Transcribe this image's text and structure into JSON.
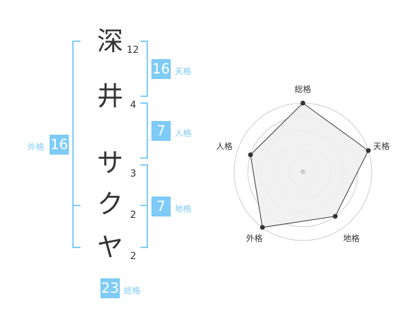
{
  "name": {
    "chars": [
      {
        "char": "深",
        "strokes": "12"
      },
      {
        "char": "井",
        "strokes": "4"
      },
      {
        "char": "サ",
        "strokes": "3"
      },
      {
        "char": "ク",
        "strokes": "2"
      },
      {
        "char": "ヤ",
        "strokes": "2"
      }
    ]
  },
  "kaku": {
    "tenkaku": {
      "label": "天格",
      "value": "16"
    },
    "jinkaku": {
      "label": "人格",
      "value": "7"
    },
    "chikaku": {
      "label": "地格",
      "value": "7"
    },
    "gaikaku": {
      "label": "外格",
      "value": "16"
    },
    "soukaku": {
      "label": "総格",
      "value": "23"
    }
  },
  "chart_data": {
    "type": "radar",
    "axes": [
      "総格",
      "天格",
      "地格",
      "外格",
      "人格"
    ],
    "values": [
      5,
      5,
      4,
      5,
      4
    ],
    "range": [
      0,
      5
    ],
    "rings": 5,
    "colors": {
      "accent": "#7ecbf7",
      "fill": "#f0f0f0",
      "line": "#333333",
      "grid": "#cccccc"
    }
  }
}
